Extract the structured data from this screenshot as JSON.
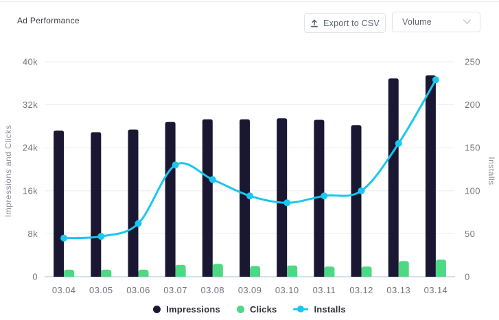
{
  "header": {
    "title": "Ad Performance",
    "export_button": "Export to CSV",
    "volume_select": "Volume"
  },
  "colors": {
    "impressions": "#1a1733",
    "clicks": "#4ed883",
    "installs": "#1ac7f0",
    "grid_line": "#ededf2",
    "axis_base_line": "#c9d4e8",
    "tick_text": "#73737d",
    "axis_title_text": "#8d8d99",
    "legend_text": "#2e2e3d"
  },
  "chart_data": {
    "type": "combo-bar-line",
    "title": "Ad Performance",
    "grid": true,
    "legend_position": "bottom",
    "categories": [
      "03.04",
      "03.05",
      "03.06",
      "03.07",
      "03.08",
      "03.09",
      "03.10",
      "03.11",
      "03.12",
      "03.13",
      "03.14"
    ],
    "series": [
      {
        "name": "Impressions",
        "type": "bar",
        "axis": "left",
        "color": "#1a1733",
        "values": [
          27200,
          26900,
          27400,
          28800,
          29300,
          29300,
          29500,
          29200,
          28200,
          36900,
          37500
        ]
      },
      {
        "name": "Clicks",
        "type": "bar",
        "axis": "left",
        "color": "#4ed883",
        "values": [
          1300,
          1300,
          1300,
          2200,
          2400,
          2000,
          2100,
          1900,
          1900,
          2900,
          3200
        ]
      },
      {
        "name": "Installs",
        "type": "line",
        "axis": "right",
        "color": "#1ac7f0",
        "values": [
          45,
          47,
          62,
          130,
          113,
          94,
          86,
          94,
          100,
          155,
          229
        ]
      }
    ],
    "left_axis": {
      "title": "Impressions and Clicks",
      "tick_labels": [
        "0",
        "8k",
        "16k",
        "24k",
        "32k",
        "40k"
      ],
      "tick_values": [
        0,
        8000,
        16000,
        24000,
        32000,
        40000
      ],
      "min": 0,
      "max": 40000
    },
    "right_axis": {
      "title": "Installs",
      "tick_labels": [
        "0",
        "50",
        "100",
        "150",
        "200",
        "250"
      ],
      "tick_values": [
        0,
        50,
        100,
        150,
        200,
        250
      ],
      "min": 0,
      "max": 250
    }
  }
}
